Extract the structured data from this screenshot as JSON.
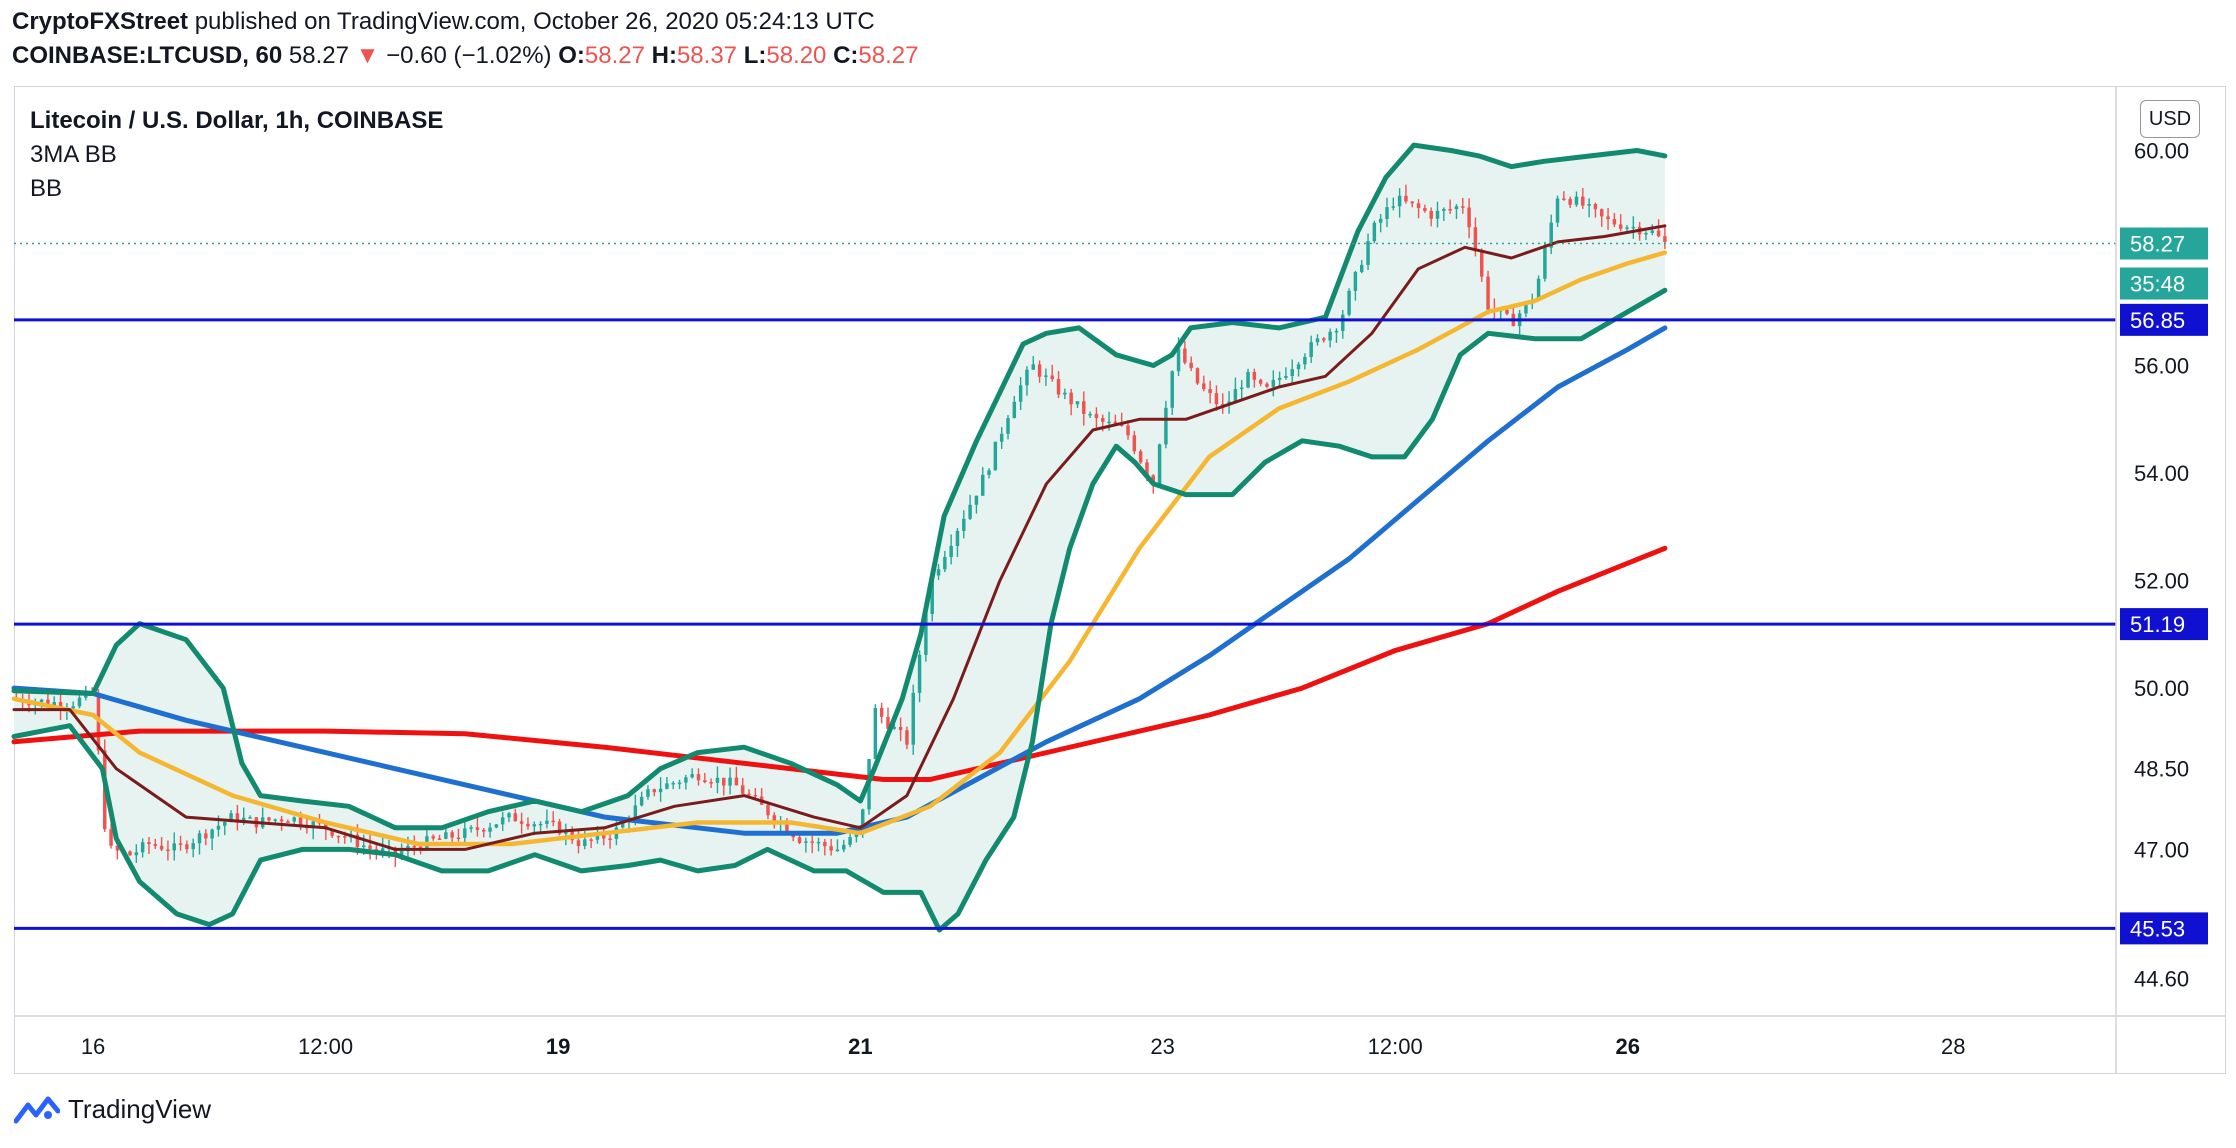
{
  "header": {
    "publisher": "CryptoFXStreet",
    "published_text": "published on TradingView.com, October 26, 2020 05:24:13 UTC",
    "symbol": "COINBASE:LTCUSD, 60",
    "last": "58.27",
    "change_arrow": "▼",
    "change": "−0.60 (−1.02%)",
    "o_label": "O:",
    "o_value": "58.27",
    "h_label": "H:",
    "h_value": "58.37",
    "l_label": "L:",
    "l_value": "58.20",
    "c_label": "C:",
    "c_value": "58.27"
  },
  "legend": {
    "title": "Litecoin / U.S. Dollar, 1h, COINBASE",
    "indicator1": "3MA BB",
    "indicator2": "BB"
  },
  "currency_button": "USD",
  "footer": {
    "brand": "TradingView",
    "logo_icon": "tradingview-logo-icon"
  },
  "colors": {
    "up": "#26a69a",
    "down": "#ef5350",
    "band": "#128a6f",
    "band_fill": "#e6f3f0",
    "ma_fast": "#7b1c1c",
    "ma_mid": "#f5b731",
    "ma_slow": "#1e6fd0",
    "ma_long": "#ef1010",
    "level": "#1010d0",
    "grid_text": "#131722"
  },
  "chart_data": {
    "type": "candlestick",
    "y_ticks": [
      "60.00",
      "56.00",
      "54.00",
      "52.00",
      "50.00",
      "48.50",
      "47.00",
      "44.60"
    ],
    "x_ticks": [
      {
        "label": "16",
        "x": 0.5,
        "bold": false
      },
      {
        "label": "12:00",
        "x": 1.0,
        "bold": false
      },
      {
        "label": "19",
        "x": 1.5,
        "bold": true
      },
      {
        "label": "21",
        "x": 2.15,
        "bold": true
      },
      {
        "label": "23",
        "x": 2.8,
        "bold": false
      },
      {
        "label": "12:00",
        "x": 3.3,
        "bold": false
      },
      {
        "label": "26",
        "x": 3.8,
        "bold": true
      },
      {
        "label": "28",
        "x": 4.5,
        "bold": false
      }
    ],
    "x_range": [
      0.33,
      4.85
    ],
    "last_x": 3.88,
    "y_range": [
      43.9,
      61.2
    ],
    "last_price": {
      "value": 58.27,
      "label": "58.27",
      "countdown": "35:48"
    },
    "levels": [
      {
        "value": 56.85,
        "label": "56.85"
      },
      {
        "value": 51.19,
        "label": "51.19"
      },
      {
        "value": 45.53,
        "label": "45.53"
      }
    ],
    "price_path": [
      [
        0.33,
        49.8
      ],
      [
        0.45,
        49.7
      ],
      [
        0.5,
        49.9
      ],
      [
        0.53,
        47.0
      ],
      [
        0.58,
        46.9
      ],
      [
        0.62,
        47.1
      ],
      [
        0.68,
        47.0
      ],
      [
        0.74,
        47.3
      ],
      [
        0.8,
        47.6
      ],
      [
        0.85,
        47.5
      ],
      [
        0.92,
        47.6
      ],
      [
        1.0,
        47.4
      ],
      [
        1.05,
        47.2
      ],
      [
        1.1,
        47.0
      ],
      [
        1.15,
        46.9
      ],
      [
        1.2,
        47.1
      ],
      [
        1.3,
        47.3
      ],
      [
        1.4,
        47.6
      ],
      [
        1.5,
        47.4
      ],
      [
        1.55,
        47.1
      ],
      [
        1.62,
        47.3
      ],
      [
        1.7,
        48.1
      ],
      [
        1.8,
        48.4
      ],
      [
        1.88,
        48.2
      ],
      [
        1.95,
        47.7
      ],
      [
        2.02,
        47.2
      ],
      [
        2.1,
        47.0
      ],
      [
        2.15,
        47.3
      ],
      [
        2.18,
        49.6
      ],
      [
        2.25,
        49.0
      ],
      [
        2.3,
        52.0
      ],
      [
        2.36,
        53.0
      ],
      [
        2.42,
        54.0
      ],
      [
        2.48,
        55.4
      ],
      [
        2.52,
        56.0
      ],
      [
        2.58,
        55.5
      ],
      [
        2.65,
        55.0
      ],
      [
        2.72,
        54.8
      ],
      [
        2.78,
        53.8
      ],
      [
        2.8,
        55.0
      ],
      [
        2.83,
        56.3
      ],
      [
        2.88,
        55.6
      ],
      [
        2.93,
        55.2
      ],
      [
        2.98,
        55.8
      ],
      [
        3.02,
        55.5
      ],
      [
        3.1,
        56.2
      ],
      [
        3.18,
        56.8
      ],
      [
        3.25,
        58.5
      ],
      [
        3.3,
        59.1
      ],
      [
        3.38,
        58.8
      ],
      [
        3.45,
        59.0
      ],
      [
        3.5,
        57.1
      ],
      [
        3.55,
        56.8
      ],
      [
        3.6,
        57.3
      ],
      [
        3.65,
        59.2
      ],
      [
        3.7,
        59.0
      ],
      [
        3.75,
        58.7
      ],
      [
        3.8,
        58.6
      ],
      [
        3.85,
        58.5
      ],
      [
        3.88,
        58.27
      ]
    ],
    "ma_fast": [
      [
        0.33,
        49.6
      ],
      [
        0.45,
        49.6
      ],
      [
        0.55,
        48.5
      ],
      [
        0.7,
        47.6
      ],
      [
        0.85,
        47.5
      ],
      [
        1.0,
        47.4
      ],
      [
        1.15,
        47.0
      ],
      [
        1.3,
        47.0
      ],
      [
        1.45,
        47.3
      ],
      [
        1.6,
        47.4
      ],
      [
        1.75,
        47.8
      ],
      [
        1.9,
        48.0
      ],
      [
        2.05,
        47.6
      ],
      [
        2.15,
        47.4
      ],
      [
        2.25,
        48.0
      ],
      [
        2.35,
        49.8
      ],
      [
        2.45,
        52.0
      ],
      [
        2.55,
        53.8
      ],
      [
        2.65,
        54.8
      ],
      [
        2.75,
        55.0
      ],
      [
        2.85,
        55.0
      ],
      [
        2.95,
        55.3
      ],
      [
        3.05,
        55.6
      ],
      [
        3.15,
        55.8
      ],
      [
        3.25,
        56.6
      ],
      [
        3.35,
        57.8
      ],
      [
        3.45,
        58.2
      ],
      [
        3.55,
        58.0
      ],
      [
        3.65,
        58.3
      ],
      [
        3.75,
        58.4
      ],
      [
        3.88,
        58.6
      ]
    ],
    "ma_mid": [
      [
        0.33,
        49.8
      ],
      [
        0.5,
        49.5
      ],
      [
        0.6,
        48.8
      ],
      [
        0.8,
        48.0
      ],
      [
        1.0,
        47.5
      ],
      [
        1.2,
        47.1
      ],
      [
        1.4,
        47.1
      ],
      [
        1.6,
        47.3
      ],
      [
        1.8,
        47.5
      ],
      [
        2.0,
        47.5
      ],
      [
        2.15,
        47.3
      ],
      [
        2.3,
        47.8
      ],
      [
        2.45,
        48.8
      ],
      [
        2.6,
        50.5
      ],
      [
        2.75,
        52.6
      ],
      [
        2.9,
        54.3
      ],
      [
        3.05,
        55.2
      ],
      [
        3.2,
        55.7
      ],
      [
        3.35,
        56.3
      ],
      [
        3.5,
        57.0
      ],
      [
        3.6,
        57.2
      ],
      [
        3.7,
        57.6
      ],
      [
        3.8,
        57.9
      ],
      [
        3.88,
        58.1
      ]
    ],
    "ma_slow": [
      [
        0.33,
        50.0
      ],
      [
        0.5,
        49.9
      ],
      [
        0.7,
        49.4
      ],
      [
        1.0,
        48.8
      ],
      [
        1.3,
        48.2
      ],
      [
        1.6,
        47.6
      ],
      [
        1.9,
        47.3
      ],
      [
        2.1,
        47.3
      ],
      [
        2.25,
        47.6
      ],
      [
        2.4,
        48.3
      ],
      [
        2.55,
        49.0
      ],
      [
        2.75,
        49.8
      ],
      [
        2.9,
        50.6
      ],
      [
        3.05,
        51.5
      ],
      [
        3.2,
        52.4
      ],
      [
        3.35,
        53.5
      ],
      [
        3.5,
        54.6
      ],
      [
        3.65,
        55.6
      ],
      [
        3.8,
        56.3
      ],
      [
        3.88,
        56.7
      ]
    ],
    "ma_long": [
      [
        0.33,
        49.0
      ],
      [
        0.6,
        49.2
      ],
      [
        1.0,
        49.2
      ],
      [
        1.3,
        49.15
      ],
      [
        1.6,
        48.9
      ],
      [
        1.9,
        48.6
      ],
      [
        2.1,
        48.4
      ],
      [
        2.2,
        48.3
      ],
      [
        2.3,
        48.3
      ],
      [
        2.5,
        48.7
      ],
      [
        2.7,
        49.1
      ],
      [
        2.9,
        49.5
      ],
      [
        3.1,
        50.0
      ],
      [
        3.3,
        50.7
      ],
      [
        3.5,
        51.2
      ],
      [
        3.65,
        51.8
      ],
      [
        3.88,
        52.6
      ]
    ],
    "bb_upper": [
      [
        0.33,
        49.95
      ],
      [
        0.5,
        49.9
      ],
      [
        0.55,
        50.8
      ],
      [
        0.6,
        51.2
      ],
      [
        0.7,
        50.9
      ],
      [
        0.78,
        50.0
      ],
      [
        0.82,
        48.6
      ],
      [
        0.86,
        48.0
      ],
      [
        0.95,
        47.9
      ],
      [
        1.05,
        47.8
      ],
      [
        1.15,
        47.4
      ],
      [
        1.25,
        47.4
      ],
      [
        1.35,
        47.7
      ],
      [
        1.45,
        47.9
      ],
      [
        1.55,
        47.7
      ],
      [
        1.65,
        48.0
      ],
      [
        1.72,
        48.5
      ],
      [
        1.8,
        48.8
      ],
      [
        1.9,
        48.9
      ],
      [
        2.0,
        48.6
      ],
      [
        2.1,
        48.2
      ],
      [
        2.15,
        47.9
      ],
      [
        2.18,
        48.5
      ],
      [
        2.24,
        49.8
      ],
      [
        2.28,
        51.0
      ],
      [
        2.33,
        53.2
      ],
      [
        2.4,
        54.6
      ],
      [
        2.45,
        55.5
      ],
      [
        2.5,
        56.4
      ],
      [
        2.55,
        56.6
      ],
      [
        2.62,
        56.7
      ],
      [
        2.7,
        56.2
      ],
      [
        2.78,
        56.0
      ],
      [
        2.82,
        56.2
      ],
      [
        2.86,
        56.7
      ],
      [
        2.95,
        56.8
      ],
      [
        3.05,
        56.7
      ],
      [
        3.15,
        56.9
      ],
      [
        3.22,
        58.5
      ],
      [
        3.28,
        59.5
      ],
      [
        3.34,
        60.1
      ],
      [
        3.42,
        60.0
      ],
      [
        3.48,
        59.9
      ],
      [
        3.55,
        59.7
      ],
      [
        3.62,
        59.8
      ],
      [
        3.72,
        59.9
      ],
      [
        3.82,
        60.0
      ],
      [
        3.88,
        59.9
      ]
    ],
    "bb_lower": [
      [
        0.33,
        49.1
      ],
      [
        0.45,
        49.3
      ],
      [
        0.52,
        48.5
      ],
      [
        0.55,
        47.2
      ],
      [
        0.6,
        46.4
      ],
      [
        0.68,
        45.8
      ],
      [
        0.75,
        45.6
      ],
      [
        0.8,
        45.8
      ],
      [
        0.86,
        46.8
      ],
      [
        0.95,
        47.0
      ],
      [
        1.05,
        47.0
      ],
      [
        1.15,
        46.9
      ],
      [
        1.25,
        46.6
      ],
      [
        1.35,
        46.6
      ],
      [
        1.45,
        46.9
      ],
      [
        1.55,
        46.6
      ],
      [
        1.65,
        46.7
      ],
      [
        1.72,
        46.8
      ],
      [
        1.8,
        46.6
      ],
      [
        1.88,
        46.7
      ],
      [
        1.95,
        47.0
      ],
      [
        2.05,
        46.6
      ],
      [
        2.12,
        46.6
      ],
      [
        2.2,
        46.2
      ],
      [
        2.28,
        46.2
      ],
      [
        2.32,
        45.5
      ],
      [
        2.36,
        45.8
      ],
      [
        2.42,
        46.8
      ],
      [
        2.48,
        47.6
      ],
      [
        2.52,
        49.0
      ],
      [
        2.56,
        51.2
      ],
      [
        2.6,
        52.6
      ],
      [
        2.65,
        53.8
      ],
      [
        2.7,
        54.5
      ],
      [
        2.74,
        54.2
      ],
      [
        2.78,
        53.8
      ],
      [
        2.85,
        53.6
      ],
      [
        2.95,
        53.6
      ],
      [
        3.02,
        54.2
      ],
      [
        3.1,
        54.6
      ],
      [
        3.18,
        54.5
      ],
      [
        3.25,
        54.3
      ],
      [
        3.32,
        54.3
      ],
      [
        3.38,
        55.0
      ],
      [
        3.44,
        56.2
      ],
      [
        3.5,
        56.6
      ],
      [
        3.6,
        56.5
      ],
      [
        3.7,
        56.5
      ],
      [
        3.8,
        57.0
      ],
      [
        3.88,
        57.4
      ]
    ]
  }
}
